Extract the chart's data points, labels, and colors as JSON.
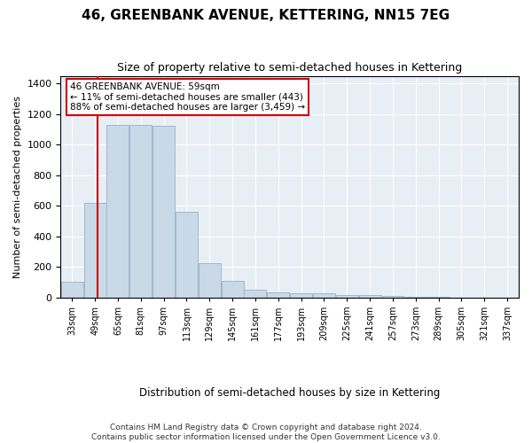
{
  "title": "46, GREENBANK AVENUE, KETTERING, NN15 7EG",
  "subtitle": "Size of property relative to semi-detached houses in Kettering",
  "xlabel": "Distribution of semi-detached houses by size in Kettering",
  "ylabel": "Number of semi-detached properties",
  "property_size": 59,
  "annotation_line1": "46 GREENBANK AVENUE: 59sqm",
  "annotation_line2": "← 11% of semi-detached houses are smaller (443)",
  "annotation_line3": "88% of semi-detached houses are larger (3,459) →",
  "footer_line1": "Contains HM Land Registry data © Crown copyright and database right 2024.",
  "footer_line2": "Contains public sector information licensed under the Open Government Licence v3.0.",
  "bar_color": "#c9d9e8",
  "bar_edge_color": "#a0b8cc",
  "vline_color": "#cc0000",
  "annotation_box_color": "#cc0000",
  "background_color": "#e8eef5",
  "bins": [
    33,
    49,
    65,
    81,
    97,
    113,
    129,
    145,
    161,
    177,
    193,
    209,
    225,
    241,
    257,
    273,
    289,
    305,
    321,
    337,
    353
  ],
  "bin_labels": [
    "33sqm",
    "49sqm",
    "65sqm",
    "81sqm",
    "97sqm",
    "113sqm",
    "129sqm",
    "145sqm",
    "161sqm",
    "177sqm",
    "193sqm",
    "209sqm",
    "225sqm",
    "241sqm",
    "257sqm",
    "273sqm",
    "289sqm",
    "305sqm",
    "321sqm",
    "337sqm"
  ],
  "values": [
    100,
    620,
    1130,
    1130,
    1120,
    560,
    225,
    107,
    53,
    35,
    30,
    28,
    18,
    14,
    8,
    4,
    2,
    1,
    0,
    0
  ],
  "ylim": [
    0,
    1450
  ],
  "yticks": [
    0,
    200,
    400,
    600,
    800,
    1000,
    1200,
    1400
  ]
}
